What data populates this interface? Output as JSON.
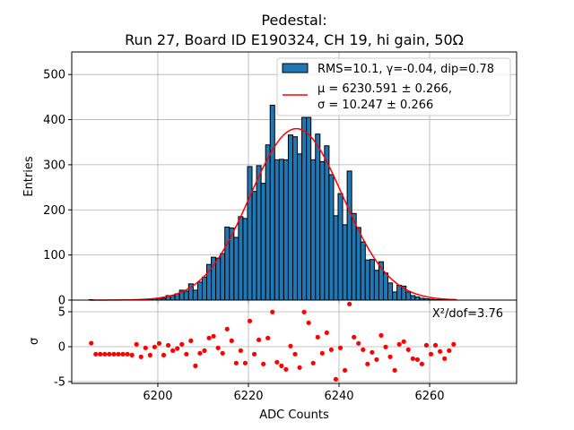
{
  "chart_data": {
    "type": "bar",
    "title_line1": "Pedestal:",
    "title_line2": "Run 27, Board ID E190324, CH 19, hi gain, 50Ω",
    "xlabel": "ADC Counts",
    "ylabel": "Entries",
    "residual_ylabel": "σ",
    "xlim": [
      6181,
      6279.2
    ],
    "ylim": [
      0,
      550
    ],
    "residual_ylim": [
      -5.26,
      6.67
    ],
    "grid": true,
    "x_ticks": [
      6200,
      6220,
      6240,
      6260
    ],
    "y_ticks": [
      0,
      100,
      200,
      300,
      400,
      500
    ],
    "residual_y_ticks": [
      -5,
      0,
      5
    ],
    "bin_first_center": 6185.3,
    "bin_width": 1,
    "histogram": [
      1,
      0,
      0,
      0,
      0,
      0,
      0,
      0,
      0,
      0,
      0,
      1,
      0,
      1,
      3,
      4,
      4,
      10,
      10,
      14,
      22,
      20,
      36,
      22,
      40,
      51,
      79,
      95,
      93,
      103,
      162,
      160,
      139,
      185,
      181,
      296,
      241,
      298,
      259,
      344,
      432,
      311,
      312,
      311,
      366,
      362,
      324,
      405,
      405,
      311,
      368,
      307,
      342,
      278,
      187,
      236,
      167,
      286,
      192,
      161,
      129,
      89,
      90,
      66,
      85,
      60,
      38,
      18,
      33,
      31,
      18,
      10,
      7,
      4,
      3,
      2,
      1,
      1,
      1,
      1,
      0
    ],
    "fit": {
      "mu": 6230.591,
      "sigma": 10.247,
      "amplitude": 380,
      "range": [
        6185,
        6266
      ]
    },
    "residuals": [
      0.5,
      -1.07,
      -1.07,
      -1.07,
      -1.07,
      -1.07,
      -1.07,
      -1.07,
      -1.07,
      -1.2,
      0.34,
      -1.45,
      -0.17,
      -1.2,
      -0.04,
      0.47,
      -1.2,
      0.2,
      -0.56,
      -0.26,
      0.34,
      -1.07,
      0.85,
      -2.74,
      -0.94,
      -0.56,
      1.24,
      1.5,
      -0.17,
      -0.94,
      2.52,
      0.85,
      -2.35,
      -0.56,
      -2.35,
      3.68,
      -1.07,
      0.98,
      -2.48,
      1.24,
      4.96,
      -2.22,
      -2.74,
      -3.25,
      0.09,
      -1.07,
      -2.99,
      4.96,
      3.42,
      -2.35,
      1.37,
      -0.94,
      2.0,
      -0.43,
      -4.66,
      -0.17,
      -3.38,
      6.11,
      1.37,
      0.47,
      -0.43,
      -2.48,
      -0.81,
      -1.84,
      1.62,
      -0.04,
      -1.45,
      -3.38,
      0.34,
      0.73,
      -0.43,
      -1.71,
      -1.84,
      -2.48,
      0.21,
      -1.07,
      0.21,
      -0.68,
      -1.71,
      -0.56,
      0.34
    ],
    "legend": {
      "placement": "top-right",
      "entries": [
        {
          "label": "RMS=10.1, γ=-0.04, dip=0.78",
          "kind": "patch",
          "color": "#1f77b4"
        },
        {
          "label_line1": "μ = 6230.591 ± 0.266,",
          "label_line2": "σ = 10.247 ± 0.266",
          "kind": "line",
          "color": "#ff0000"
        }
      ]
    },
    "annotation": "X²/dof=3.76",
    "colors": {
      "bar": "#1f77b4",
      "fit": "#ff0000",
      "residual": "#ff0000",
      "grid": "#b0b0b0"
    }
  }
}
